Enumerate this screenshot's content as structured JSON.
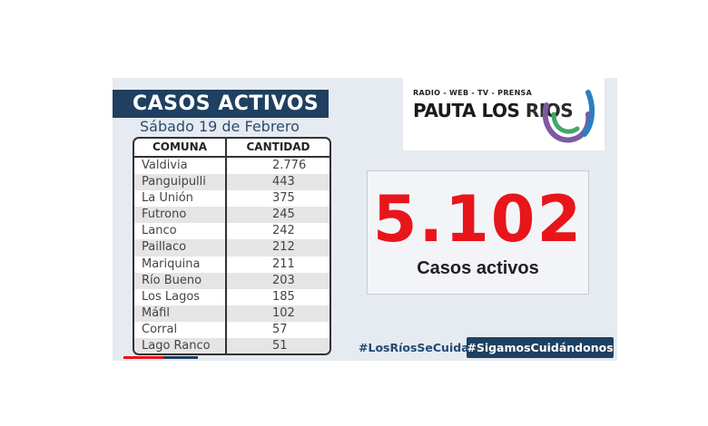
{
  "header": {
    "title": "CASOS ACTIVOS",
    "date": "Sábado 19 de Febrero"
  },
  "table": {
    "columns": [
      "COMUNA",
      "CANTIDAD"
    ],
    "rows": [
      {
        "comuna": "Valdivia",
        "cantidad": "2.776"
      },
      {
        "comuna": "Panguipulli",
        "cantidad": "443"
      },
      {
        "comuna": "La Unión",
        "cantidad": "375"
      },
      {
        "comuna": "Futrono",
        "cantidad": "245"
      },
      {
        "comuna": "Lanco",
        "cantidad": "242"
      },
      {
        "comuna": "Paillaco",
        "cantidad": "212"
      },
      {
        "comuna": "Mariquina",
        "cantidad": "211"
      },
      {
        "comuna": "Río Bueno",
        "cantidad": "203"
      },
      {
        "comuna": "Los Lagos",
        "cantidad": "185"
      },
      {
        "comuna": "Máfil",
        "cantidad": "102"
      },
      {
        "comuna": "Corral",
        "cantidad": "57"
      },
      {
        "comuna": "Lago Ranco",
        "cantidad": "51"
      }
    ]
  },
  "logo": {
    "tagline": "RADIO - WEB - TV - PRENSA",
    "brand_part1": "PAUTA LOS ",
    "brand_part2": "RIOS",
    "icon": "pauta-los-rios-logo-icon"
  },
  "summary": {
    "total": "5.102",
    "label": "Casos activos"
  },
  "hashtags": {
    "first": "#LosRíosSeCuida",
    "second": "#SigamosCuidándonos"
  },
  "colors": {
    "navy": "#1f4060",
    "red": "#e8151b",
    "panel": "#e6eaf1"
  }
}
